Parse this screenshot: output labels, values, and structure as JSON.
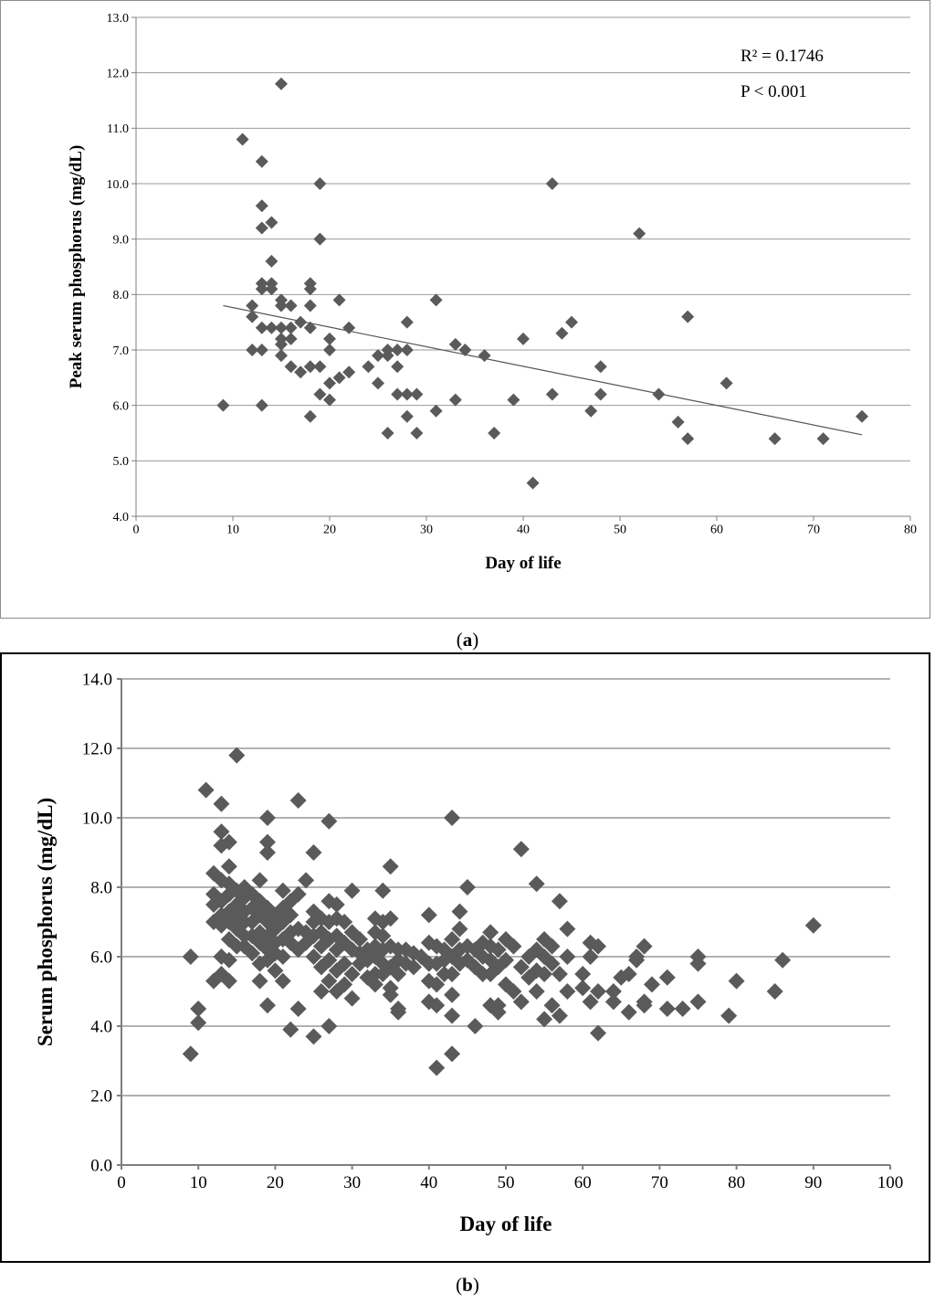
{
  "captions": {
    "a_label": "a",
    "b_label": "b",
    "open_paren": "(",
    "close_paren": ")"
  },
  "colors": {
    "marker": "#5a5a5a",
    "grid": "#999999",
    "axis": "#7f7f7f",
    "trend": "#555555"
  },
  "chart_data": [
    {
      "id": "a",
      "type": "scatter",
      "title": "",
      "xlabel": "Day of life",
      "ylabel": "Peak serum phosphorus (mg/dL)",
      "xlim": [
        0,
        80
      ],
      "ylim": [
        4.0,
        13.0
      ],
      "xticks": [
        0,
        10,
        20,
        30,
        40,
        50,
        60,
        70,
        80
      ],
      "yticks": [
        4.0,
        5.0,
        6.0,
        7.0,
        8.0,
        9.0,
        10.0,
        11.0,
        12.0,
        13.0
      ],
      "grid": "horizontal",
      "annotations": [
        "R² = 0.1746",
        "P < 0.001"
      ],
      "trendline": {
        "x": [
          9,
          75
        ],
        "y": [
          7.8,
          5.47
        ]
      },
      "points": [
        [
          9,
          6.0
        ],
        [
          11,
          10.8
        ],
        [
          12,
          7.8
        ],
        [
          12,
          7.6
        ],
        [
          12,
          7.0
        ],
        [
          13,
          10.4
        ],
        [
          13,
          9.6
        ],
        [
          13,
          9.2
        ],
        [
          13,
          8.2
        ],
        [
          13,
          8.1
        ],
        [
          13,
          7.4
        ],
        [
          13,
          7.0
        ],
        [
          13,
          6.0
        ],
        [
          14,
          9.3
        ],
        [
          14,
          8.6
        ],
        [
          14,
          8.2
        ],
        [
          14,
          8.1
        ],
        [
          14,
          7.4
        ],
        [
          15,
          11.8
        ],
        [
          15,
          7.9
        ],
        [
          15,
          7.8
        ],
        [
          15,
          7.4
        ],
        [
          15,
          7.2
        ],
        [
          15,
          7.1
        ],
        [
          15,
          6.9
        ],
        [
          16,
          7.8
        ],
        [
          16,
          7.4
        ],
        [
          16,
          7.2
        ],
        [
          16,
          6.7
        ],
        [
          17,
          7.5
        ],
        [
          17,
          6.6
        ],
        [
          18,
          8.2
        ],
        [
          18,
          8.1
        ],
        [
          18,
          7.8
        ],
        [
          18,
          7.4
        ],
        [
          18,
          6.7
        ],
        [
          18,
          5.8
        ],
        [
          19,
          10.0
        ],
        [
          19,
          9.0
        ],
        [
          19,
          6.7
        ],
        [
          19,
          6.2
        ],
        [
          20,
          7.2
        ],
        [
          20,
          7.0
        ],
        [
          20,
          6.4
        ],
        [
          20,
          6.1
        ],
        [
          21,
          7.9
        ],
        [
          21,
          6.5
        ],
        [
          22,
          7.4
        ],
        [
          22,
          6.6
        ],
        [
          24,
          6.7
        ],
        [
          25,
          6.9
        ],
        [
          25,
          6.4
        ],
        [
          26,
          7.0
        ],
        [
          26,
          6.9
        ],
        [
          26,
          5.5
        ],
        [
          27,
          7.0
        ],
        [
          27,
          6.7
        ],
        [
          27,
          6.2
        ],
        [
          28,
          7.5
        ],
        [
          28,
          7.0
        ],
        [
          28,
          6.2
        ],
        [
          28,
          5.8
        ],
        [
          29,
          6.2
        ],
        [
          29,
          5.5
        ],
        [
          31,
          7.9
        ],
        [
          31,
          5.9
        ],
        [
          33,
          7.1
        ],
        [
          33,
          6.1
        ],
        [
          34,
          7.0
        ],
        [
          36,
          6.9
        ],
        [
          37,
          5.5
        ],
        [
          39,
          6.1
        ],
        [
          40,
          7.2
        ],
        [
          41,
          4.6
        ],
        [
          43,
          10.0
        ],
        [
          43,
          6.2
        ],
        [
          44,
          7.3
        ],
        [
          45,
          7.5
        ],
        [
          47,
          5.9
        ],
        [
          48,
          6.7
        ],
        [
          48,
          6.2
        ],
        [
          52,
          9.1
        ],
        [
          54,
          6.2
        ],
        [
          56,
          5.7
        ],
        [
          57,
          7.6
        ],
        [
          57,
          5.4
        ],
        [
          61,
          6.4
        ],
        [
          66,
          5.4
        ],
        [
          71,
          5.4
        ],
        [
          75,
          5.8
        ]
      ]
    },
    {
      "id": "b",
      "type": "scatter",
      "title": "",
      "xlabel": "Day of life",
      "ylabel": "Serum phosphorus (mg/dL)",
      "xlim": [
        0,
        100
      ],
      "ylim": [
        0.0,
        14.0
      ],
      "xticks": [
        0,
        10,
        20,
        30,
        40,
        50,
        60,
        70,
        80,
        90,
        100
      ],
      "yticks": [
        0.0,
        2.0,
        4.0,
        6.0,
        8.0,
        10.0,
        12.0,
        14.0
      ],
      "grid": "horizontal",
      "points": [
        [
          9,
          6.0
        ],
        [
          9,
          3.2
        ],
        [
          10,
          4.5
        ],
        [
          10,
          4.1
        ],
        [
          11,
          10.8
        ],
        [
          12,
          8.4
        ],
        [
          12,
          7.8
        ],
        [
          12,
          7.5
        ],
        [
          12,
          7.0
        ],
        [
          12,
          5.3
        ],
        [
          13,
          10.4
        ],
        [
          13,
          9.6
        ],
        [
          13,
          9.2
        ],
        [
          13,
          8.2
        ],
        [
          13,
          7.6
        ],
        [
          13,
          7.2
        ],
        [
          13,
          6.9
        ],
        [
          13,
          6.0
        ],
        [
          13,
          5.5
        ],
        [
          14,
          9.3
        ],
        [
          14,
          8.6
        ],
        [
          14,
          8.1
        ],
        [
          14,
          7.8
        ],
        [
          14,
          7.3
        ],
        [
          14,
          7.0
        ],
        [
          14,
          6.5
        ],
        [
          14,
          5.9
        ],
        [
          14,
          5.3
        ],
        [
          15,
          11.8
        ],
        [
          15,
          7.9
        ],
        [
          15,
          7.5
        ],
        [
          15,
          7.1
        ],
        [
          15,
          6.8
        ],
        [
          15,
          6.3
        ],
        [
          16,
          8.0
        ],
        [
          16,
          7.7
        ],
        [
          16,
          7.3
        ],
        [
          16,
          7.0
        ],
        [
          16,
          6.6
        ],
        [
          16,
          6.3
        ],
        [
          17,
          7.8
        ],
        [
          17,
          7.4
        ],
        [
          17,
          7.0
        ],
        [
          17,
          6.6
        ],
        [
          17,
          6.1
        ],
        [
          18,
          8.2
        ],
        [
          18,
          7.6
        ],
        [
          18,
          7.2
        ],
        [
          18,
          6.7
        ],
        [
          18,
          6.4
        ],
        [
          18,
          5.8
        ],
        [
          18,
          5.3
        ],
        [
          19,
          10.0
        ],
        [
          19,
          9.3
        ],
        [
          19,
          9.0
        ],
        [
          19,
          7.4
        ],
        [
          19,
          7.0
        ],
        [
          19,
          6.6
        ],
        [
          19,
          6.2
        ],
        [
          19,
          5.9
        ],
        [
          19,
          4.6
        ],
        [
          20,
          7.2
        ],
        [
          20,
          7.0
        ],
        [
          20,
          6.8
        ],
        [
          20,
          6.4
        ],
        [
          20,
          6.1
        ],
        [
          20,
          5.6
        ],
        [
          21,
          7.9
        ],
        [
          21,
          7.4
        ],
        [
          21,
          7.0
        ],
        [
          21,
          6.5
        ],
        [
          21,
          6.0
        ],
        [
          21,
          5.3
        ],
        [
          22,
          7.6
        ],
        [
          22,
          7.2
        ],
        [
          22,
          6.7
        ],
        [
          22,
          6.4
        ],
        [
          22,
          3.9
        ],
        [
          23,
          10.5
        ],
        [
          23,
          7.8
        ],
        [
          23,
          6.8
        ],
        [
          23,
          6.2
        ],
        [
          23,
          4.5
        ],
        [
          24,
          8.2
        ],
        [
          24,
          6.7
        ],
        [
          24,
          6.4
        ],
        [
          25,
          9.0
        ],
        [
          25,
          7.3
        ],
        [
          25,
          7.0
        ],
        [
          25,
          6.6
        ],
        [
          25,
          6.0
        ],
        [
          25,
          3.7
        ],
        [
          26,
          7.1
        ],
        [
          26,
          6.7
        ],
        [
          26,
          6.3
        ],
        [
          26,
          5.7
        ],
        [
          26,
          5.0
        ],
        [
          27,
          9.9
        ],
        [
          27,
          7.6
        ],
        [
          27,
          7.0
        ],
        [
          27,
          6.5
        ],
        [
          27,
          5.9
        ],
        [
          27,
          5.3
        ],
        [
          27,
          4.0
        ],
        [
          28,
          7.5
        ],
        [
          28,
          7.1
        ],
        [
          28,
          6.6
        ],
        [
          28,
          6.2
        ],
        [
          28,
          5.6
        ],
        [
          28,
          5.0
        ],
        [
          29,
          7.0
        ],
        [
          29,
          6.4
        ],
        [
          29,
          5.8
        ],
        [
          29,
          5.2
        ],
        [
          30,
          7.9
        ],
        [
          30,
          6.7
        ],
        [
          30,
          6.2
        ],
        [
          30,
          5.5
        ],
        [
          30,
          4.8
        ],
        [
          31,
          6.5
        ],
        [
          31,
          6.1
        ],
        [
          31,
          5.8
        ],
        [
          32,
          6.2
        ],
        [
          32,
          5.9
        ],
        [
          32,
          5.4
        ],
        [
          33,
          7.1
        ],
        [
          33,
          6.7
        ],
        [
          33,
          6.3
        ],
        [
          33,
          6.0
        ],
        [
          33,
          5.5
        ],
        [
          33,
          5.2
        ],
        [
          34,
          7.9
        ],
        [
          34,
          7.0
        ],
        [
          34,
          6.6
        ],
        [
          34,
          6.2
        ],
        [
          34,
          5.8
        ],
        [
          34,
          5.5
        ],
        [
          35,
          8.6
        ],
        [
          35,
          7.1
        ],
        [
          35,
          6.3
        ],
        [
          35,
          5.7
        ],
        [
          35,
          5.1
        ],
        [
          35,
          4.9
        ],
        [
          36,
          6.2
        ],
        [
          36,
          5.9
        ],
        [
          36,
          5.5
        ],
        [
          36,
          4.5
        ],
        [
          36,
          4.4
        ],
        [
          37,
          6.2
        ],
        [
          37,
          5.8
        ],
        [
          38,
          6.1
        ],
        [
          38,
          5.7
        ],
        [
          39,
          6.0
        ],
        [
          40,
          7.2
        ],
        [
          40,
          6.4
        ],
        [
          40,
          5.8
        ],
        [
          40,
          5.3
        ],
        [
          40,
          4.7
        ],
        [
          41,
          6.3
        ],
        [
          41,
          5.8
        ],
        [
          41,
          5.2
        ],
        [
          41,
          4.6
        ],
        [
          41,
          2.8
        ],
        [
          42,
          6.2
        ],
        [
          42,
          5.9
        ],
        [
          42,
          5.5
        ],
        [
          43,
          10.0
        ],
        [
          43,
          6.5
        ],
        [
          43,
          6.0
        ],
        [
          43,
          5.5
        ],
        [
          43,
          4.9
        ],
        [
          43,
          4.3
        ],
        [
          43,
          3.2
        ],
        [
          44,
          7.3
        ],
        [
          44,
          6.8
        ],
        [
          44,
          6.2
        ],
        [
          44,
          5.8
        ],
        [
          45,
          8.0
        ],
        [
          45,
          6.3
        ],
        [
          45,
          5.9
        ],
        [
          46,
          6.2
        ],
        [
          46,
          5.7
        ],
        [
          46,
          4.0
        ],
        [
          47,
          6.4
        ],
        [
          47,
          6.0
        ],
        [
          47,
          5.5
        ],
        [
          48,
          6.7
        ],
        [
          48,
          6.3
        ],
        [
          48,
          5.9
        ],
        [
          48,
          5.5
        ],
        [
          48,
          4.6
        ],
        [
          49,
          6.2
        ],
        [
          49,
          5.7
        ],
        [
          49,
          4.6
        ],
        [
          49,
          4.4
        ],
        [
          50,
          6.5
        ],
        [
          50,
          5.9
        ],
        [
          50,
          5.2
        ],
        [
          51,
          6.3
        ],
        [
          51,
          5.0
        ],
        [
          52,
          9.1
        ],
        [
          52,
          5.7
        ],
        [
          52,
          4.7
        ],
        [
          53,
          6.0
        ],
        [
          53,
          5.4
        ],
        [
          54,
          8.1
        ],
        [
          54,
          6.2
        ],
        [
          54,
          5.6
        ],
        [
          54,
          5.0
        ],
        [
          55,
          6.5
        ],
        [
          55,
          6.0
        ],
        [
          55,
          5.5
        ],
        [
          55,
          4.2
        ],
        [
          56,
          6.3
        ],
        [
          56,
          5.8
        ],
        [
          56,
          4.6
        ],
        [
          57,
          7.6
        ],
        [
          57,
          5.5
        ],
        [
          57,
          4.3
        ],
        [
          58,
          6.8
        ],
        [
          58,
          6.0
        ],
        [
          58,
          5.0
        ],
        [
          60,
          5.5
        ],
        [
          60,
          5.1
        ],
        [
          61,
          6.4
        ],
        [
          61,
          6.0
        ],
        [
          61,
          4.7
        ],
        [
          62,
          6.3
        ],
        [
          62,
          5.0
        ],
        [
          62,
          3.8
        ],
        [
          64,
          5.0
        ],
        [
          64,
          4.7
        ],
        [
          65,
          5.4
        ],
        [
          66,
          5.5
        ],
        [
          66,
          4.4
        ],
        [
          67,
          5.9
        ],
        [
          67,
          6.0
        ],
        [
          68,
          6.3
        ],
        [
          68,
          4.6
        ],
        [
          68,
          4.7
        ],
        [
          69,
          5.2
        ],
        [
          71,
          5.4
        ],
        [
          71,
          4.5
        ],
        [
          73,
          4.5
        ],
        [
          75,
          6.0
        ],
        [
          75,
          5.8
        ],
        [
          75,
          4.7
        ],
        [
          79,
          4.3
        ],
        [
          80,
          5.3
        ],
        [
          85,
          5.0
        ],
        [
          86,
          5.9
        ],
        [
          90,
          6.9
        ]
      ]
    }
  ]
}
